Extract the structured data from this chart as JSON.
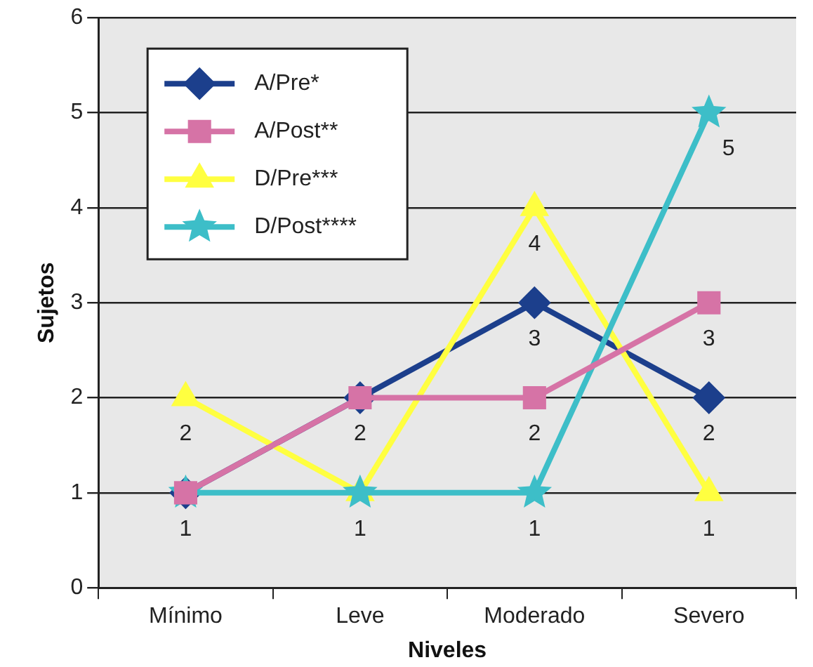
{
  "chart_data": {
    "type": "line",
    "xlabel": "Niveles",
    "ylabel": "Sujetos",
    "categories": [
      "Mínimo",
      "Leve",
      "Moderado",
      "Severo"
    ],
    "ylim": [
      0,
      6
    ],
    "yticks": [
      0,
      1,
      2,
      3,
      4,
      5,
      6
    ],
    "grid": "y",
    "legend": "top left",
    "series": [
      {
        "name": "A/Pre*",
        "color": "#1c3f8c",
        "marker": "diamond",
        "values": [
          1,
          2,
          3,
          2
        ],
        "value_labels": [
          "1",
          "2",
          "3",
          "2"
        ]
      },
      {
        "name": "A/Post**",
        "color": "#d673a6",
        "marker": "square",
        "values": [
          1,
          2,
          2,
          3
        ],
        "value_labels": [
          null,
          null,
          "2",
          "3"
        ]
      },
      {
        "name": "D/Pre***",
        "color": "#ffff40",
        "marker": "triangle",
        "values": [
          2,
          1,
          4,
          1
        ],
        "value_labels": [
          "2",
          "1",
          "4",
          "1"
        ]
      },
      {
        "name": "D/Post****",
        "color": "#3dbec8",
        "marker": "star",
        "values": [
          1,
          1,
          1,
          5
        ],
        "value_labels": [
          null,
          null,
          "1",
          "5"
        ]
      }
    ]
  }
}
